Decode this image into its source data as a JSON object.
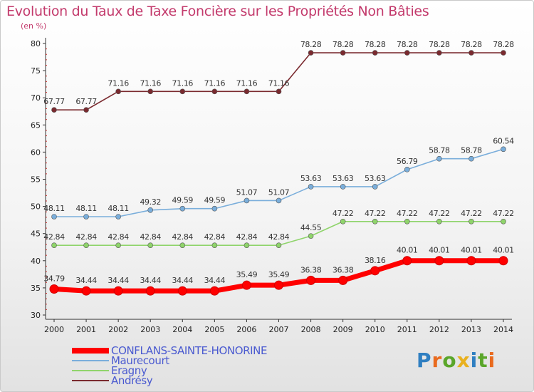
{
  "title": "Evolution du Taux de Taxe Foncière sur les Propriétés Non Bâties",
  "unit_label": "(en %)",
  "logo_text": "Proxiti",
  "chart_data": {
    "type": "line",
    "x": [
      2000,
      2001,
      2002,
      2003,
      2004,
      2005,
      2006,
      2007,
      2008,
      2009,
      2010,
      2011,
      2012,
      2013,
      2014
    ],
    "ylim": [
      30,
      80
    ],
    "yticks": [
      30,
      35,
      40,
      45,
      50,
      55,
      60,
      65,
      70,
      75,
      80
    ],
    "grid": false,
    "legend_position": "bottom-left",
    "series": [
      {
        "name": "CONFLANS-SAINTE-HONORINE",
        "color": "#ff0000",
        "values": [
          34.79,
          34.44,
          34.44,
          34.44,
          34.44,
          34.44,
          35.49,
          35.49,
          36.38,
          36.38,
          38.16,
          40.01,
          40.01,
          40.01,
          40.01
        ],
        "labels": [
          "34.79",
          "34.44",
          "34.44",
          "34.44",
          "34.44",
          "34.44",
          "35.49",
          "35.49",
          "36.38",
          "36.38",
          "38.16",
          "40.01",
          "40.01",
          "40.01",
          "40.01"
        ]
      },
      {
        "name": "Maurecourt",
        "color": "#7aaedb",
        "values": [
          48.11,
          48.11,
          48.11,
          49.32,
          49.59,
          49.59,
          51.07,
          51.07,
          53.63,
          53.63,
          53.63,
          56.79,
          58.78,
          58.78,
          60.54
        ],
        "labels": [
          "48.11",
          "48.11",
          "48.11",
          "49.32",
          "49.59",
          "49.59",
          "51.07",
          "51.07",
          "53.63",
          "53.63",
          "53.63",
          "56.79",
          "58.78",
          "58.78",
          "60.54"
        ]
      },
      {
        "name": "Eragny",
        "color": "#8fd46b",
        "values": [
          42.84,
          42.84,
          42.84,
          42.84,
          42.84,
          42.84,
          42.84,
          42.84,
          44.55,
          47.22,
          47.22,
          47.22,
          47.22,
          47.22,
          47.22
        ],
        "labels": [
          "42.84",
          "42.84",
          "42.84",
          "42.84",
          "42.84",
          "42.84",
          "42.84",
          "42.84",
          "44.55",
          "47.22",
          "47.22",
          "47.22",
          "47.22",
          "47.22",
          "47.22"
        ]
      },
      {
        "name": "Andrésy",
        "color": "#7a2a2f",
        "values": [
          67.77,
          67.77,
          71.16,
          71.16,
          71.16,
          71.16,
          71.16,
          71.16,
          78.28,
          78.28,
          78.28,
          78.28,
          78.28,
          78.28,
          78.28
        ],
        "labels": [
          "67.77",
          "67.77",
          "71.16",
          "71.16",
          "71.16",
          "71.16",
          "71.16",
          "71.16",
          "78.28",
          "78.28",
          "78.28",
          "78.28",
          "78.28",
          "78.28",
          "78.28"
        ]
      }
    ]
  }
}
